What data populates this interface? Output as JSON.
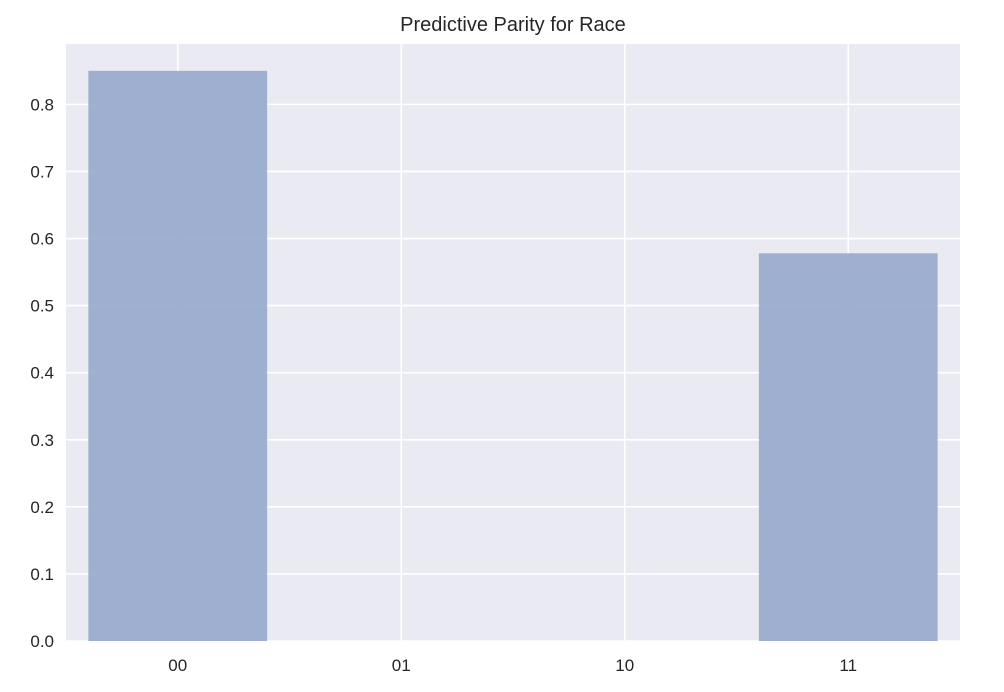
{
  "chart_data": {
    "type": "bar",
    "title": "Predictive Parity for Race",
    "xlabel": "",
    "ylabel": "",
    "categories": [
      "00",
      "01",
      "10",
      "11"
    ],
    "values": [
      0.85,
      0,
      0,
      0.578
    ],
    "ylim": [
      0,
      0.89
    ],
    "yticks": [
      "0.0",
      "0.1",
      "0.2",
      "0.3",
      "0.4",
      "0.5",
      "0.6",
      "0.7",
      "0.8"
    ],
    "grid": true,
    "colors": {
      "plot_background": "#EAEAF2",
      "grid": "#FFFFFF",
      "bar": "#9BACCE",
      "text": "#262626"
    }
  }
}
